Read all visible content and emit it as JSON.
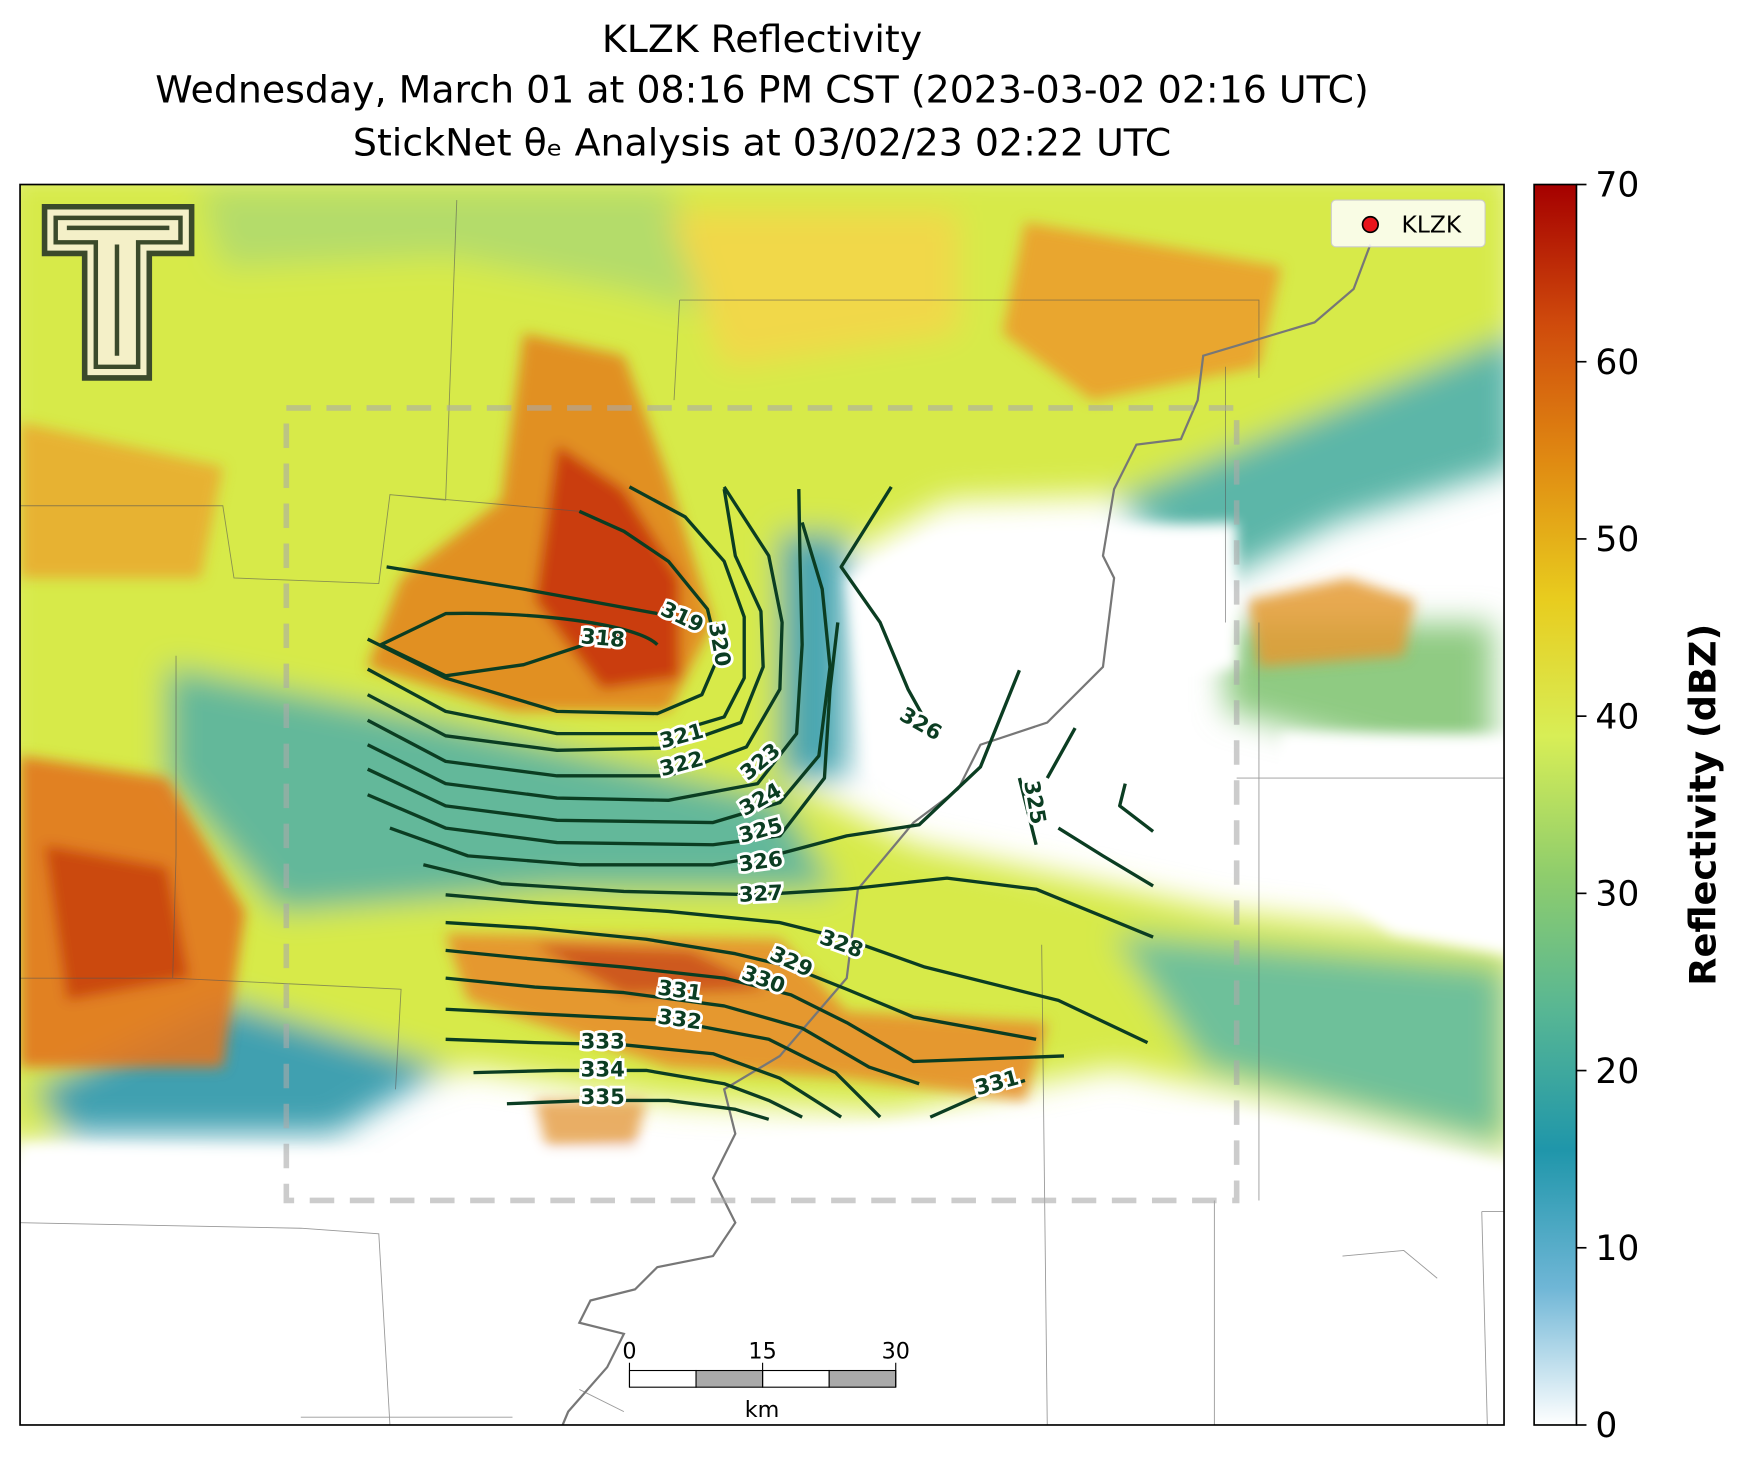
{
  "title": [
    "KLZK Reflectivity",
    "Wednesday, March 01 at 08:16 PM CST (2023-03-02 02:16 UTC)",
    "StickNet θₑ Analysis at 03/02/23 02:22 UTC"
  ],
  "legend": [
    "KLZK"
  ],
  "contour_labels": [
    318,
    319,
    320,
    321,
    322,
    323,
    324,
    325,
    326,
    327,
    328,
    329,
    330,
    331,
    332,
    333,
    334,
    335,
    326,
    325,
    331
  ],
  "scale_bar": {
    "ticks": [
      0,
      15,
      30
    ],
    "lim": [
      0,
      30
    ],
    "unit": "km"
  },
  "colorbar": {
    "label": "Reflectivity (dBZ)",
    "lim": [
      0,
      70
    ],
    "ticks": [
      0,
      10,
      20,
      30,
      40,
      50,
      60,
      70
    ],
    "colors": [
      "#ffffff",
      "#6fb6d6",
      "#1f96aa",
      "#57b694",
      "#8fcd6c",
      "#d8ee56",
      "#e8cc1e",
      "#e08a12",
      "#cf4a0c",
      "#a50000"
    ]
  }
}
